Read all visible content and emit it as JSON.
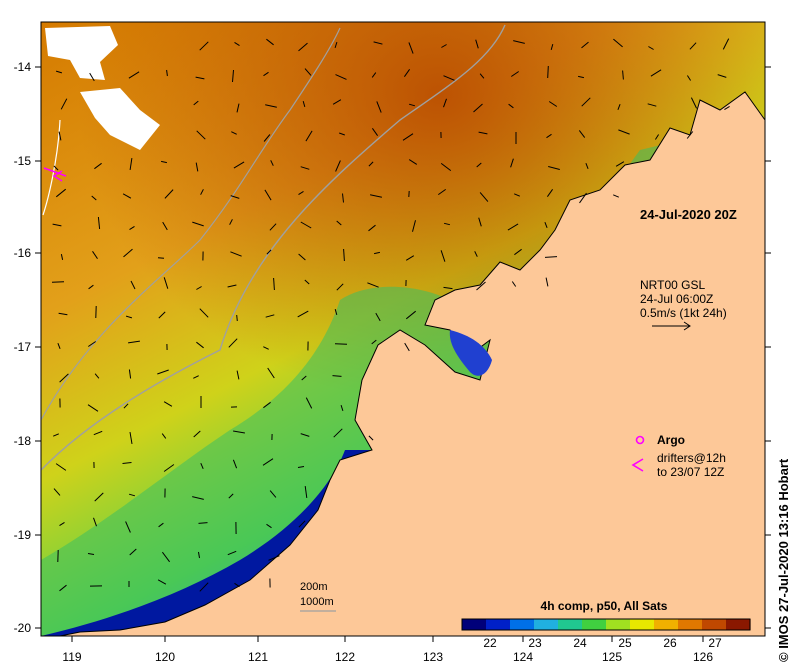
{
  "map": {
    "timestamp": "24-Jul-2020 20Z",
    "current_legend": {
      "source": "NRT00 GSL",
      "time": "24-Jul 06:00Z",
      "scale": "0.5m/s (1kt 24h)"
    },
    "argo_label": "Argo",
    "drifters_line1": "drifters@12h",
    "drifters_line2": "to 23/07 12Z",
    "depth_200": "200m",
    "depth_1000": "1000m",
    "colorbar_title": "4h comp, p50, All Sats",
    "colorbar_ticks": [
      "22",
      "23",
      "24",
      "25",
      "26",
      "27"
    ],
    "colorbar_colors": [
      "#00007a",
      "#0020c8",
      "#0070e8",
      "#20b0e0",
      "#20c890",
      "#40d040",
      "#a0e020",
      "#e8e800",
      "#f0b000",
      "#e07800",
      "#c04800",
      "#8a1800"
    ],
    "credit": "© IMOS 27-Jul-2020 13:16 Hobart",
    "lon_ticks": [
      "119",
      "120",
      "121",
      "122",
      "123",
      "124",
      "125",
      "126"
    ],
    "lat_ticks": [
      "-14",
      "-15",
      "-16",
      "-17",
      "-18",
      "-19",
      "-20"
    ],
    "colors": {
      "land": "#fdc898",
      "arrow": "#000000",
      "drifter": "#ff00ff",
      "isobath": "#a0a0a0"
    }
  }
}
